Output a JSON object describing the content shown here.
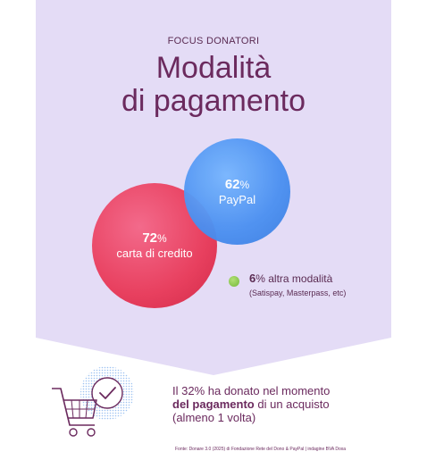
{
  "header": {
    "eyebrow": "FOCUS DONATORI",
    "title_line1": "Modalità",
    "title_line2": "di pagamento"
  },
  "methods": {
    "paypal": {
      "pct": "62",
      "pct_symbol": "%",
      "label": "PayPal"
    },
    "card": {
      "pct": "72",
      "pct_symbol": "%",
      "label": "carta di credito"
    },
    "other": {
      "pct": "6",
      "pct_symbol": "%",
      "label": " altra modalità",
      "note": "(Satispay, Masterpass, etc)"
    }
  },
  "stat": {
    "part1": "Il 32% ha donato nel momento",
    "part2": "del pagamento",
    "part3": " di un acquisto",
    "part4": "(almeno 1 volta)"
  },
  "source": "Fonte: Donare 3.0 (2025) di Fondazione Rete del Dono & PayPal | indagine BVA Doxa",
  "colors": {
    "panel": "#e4dcf6",
    "card_red": "#e8405f",
    "paypal_blue": "#4a8ff0",
    "other_green": "#74b83a",
    "text_plum": "#6b2a5e"
  }
}
